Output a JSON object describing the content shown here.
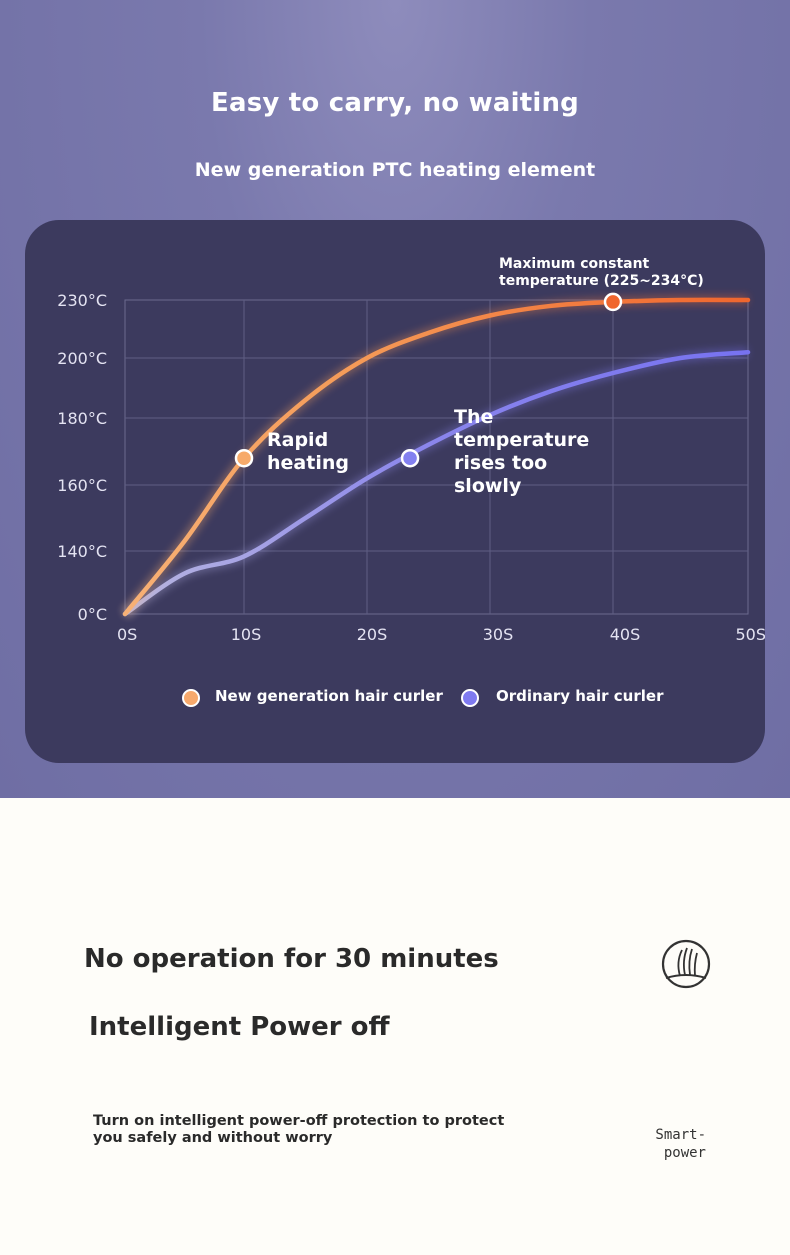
{
  "header": {
    "title": "Easy to carry, no waiting",
    "subtitle": "New generation PTC heating element"
  },
  "chart_data": {
    "type": "line",
    "title": "",
    "xlabel": "",
    "ylabel": "",
    "x_ticks": [
      "0S",
      "10S",
      "20S",
      "30S",
      "40S",
      "50S"
    ],
    "y_ticks": [
      "0°C",
      "140°C",
      "160°C",
      "180°C",
      "200°C",
      "230°C"
    ],
    "grid": true,
    "legend_position": "bottom-center",
    "series": [
      {
        "name": "New generation hair curler",
        "color_start": "#f7b176",
        "color_end": "#f0662e",
        "x": [
          0,
          5,
          10,
          15,
          20,
          25,
          30,
          35,
          40,
          45,
          50
        ],
        "y": [
          0,
          143,
          168,
          186,
          200,
          213,
          222,
          227,
          229,
          230,
          230
        ],
        "marker": {
          "x": 10,
          "y": 168
        }
      },
      {
        "name": "Ordinary hair curler",
        "color_start": "#b3b1dc",
        "color_end": "#7772f0",
        "x": [
          0,
          5,
          10,
          15,
          20,
          25,
          30,
          35,
          40,
          45,
          50
        ],
        "y": [
          0,
          90,
          128,
          150,
          162,
          172,
          181,
          189,
          195,
          200,
          203
        ],
        "marker": {
          "x": 23.5,
          "y": 168
        }
      }
    ],
    "annotations": {
      "rapid": "Rapid heating",
      "slow": "The temperature rises too slowly",
      "peak": "Maximum constant temperature (225~234°C)"
    }
  },
  "bottom": {
    "heading_1": "No operation for 30 minutes",
    "heading_2": "Intelligent Power off",
    "description": "Turn on intelligent power-off protection to protect you safely and without worry",
    "icon": "hair-strand-icon",
    "caption_line1": "Smart-",
    "caption_line2": "power"
  }
}
